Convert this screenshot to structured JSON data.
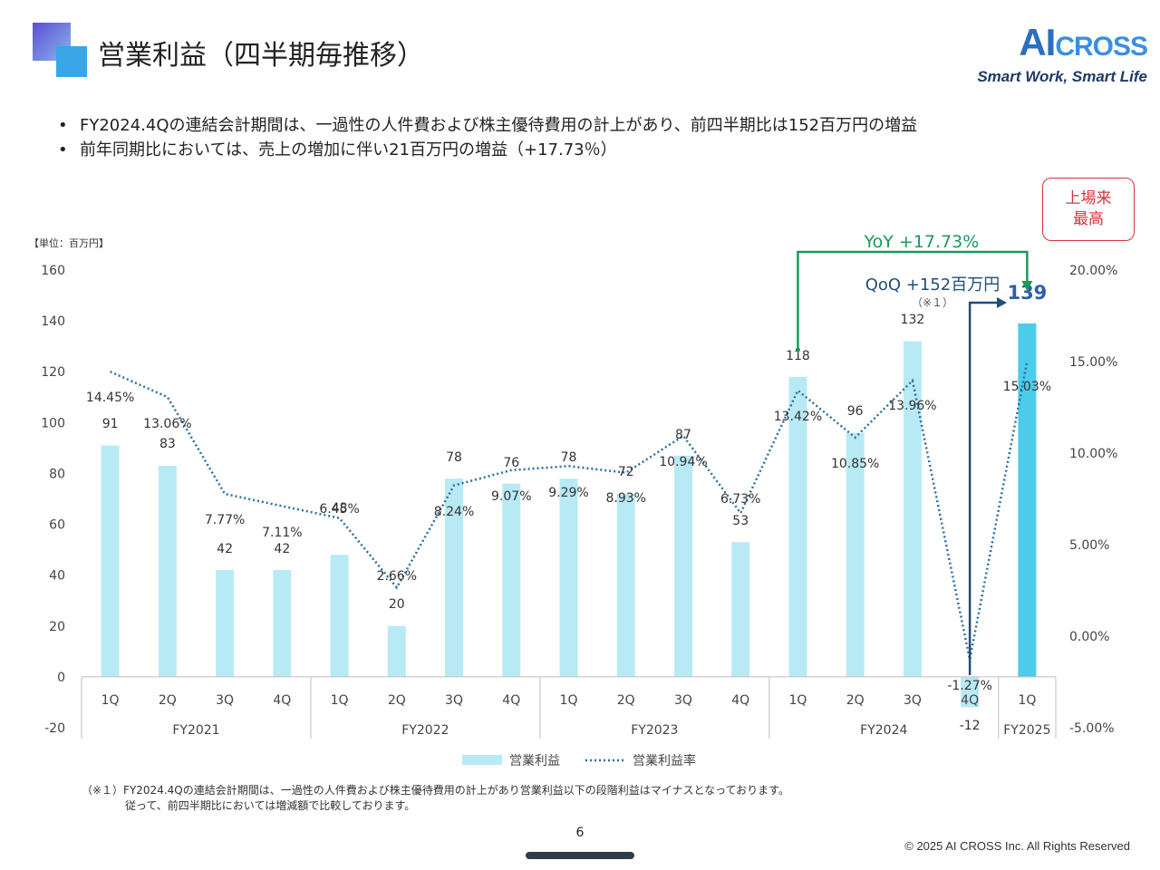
{
  "header": {
    "title": "営業利益（四半期毎推移）",
    "logo_brand_a": "AI",
    "logo_brand_b": "CROSS",
    "logo_tagline": "Smart Work, Smart Life"
  },
  "bullets": [
    "FY2024.4Qの連結会計期間は、一過性の人件費および株主優待費用の計上があり、前四半期比は152百万円の増益",
    "前年同期比においては、売上の増加に伴い21百万円の増益（+17.73％）"
  ],
  "badge": {
    "line1": "上場来",
    "line2": "最高"
  },
  "annotations": {
    "yoy": "YoY +17.73%",
    "qoq": "QoQ +152百万円",
    "qoq_note": "（※１）"
  },
  "footnote": {
    "line1": "（※１）FY2024.4Qの連結会計期間は、一過性の人件費および株主優待費用の計上があり営業利益以下の段階利益はマイナスとなっております。",
    "line2": "従って、前四半期比においては増減額で比較しております。"
  },
  "page_number": "6",
  "copyright": "© 2025 AI CROSS Inc. All Rights Reserved",
  "colors": {
    "bar": "#b8eaf6",
    "bar_highlight": "#4ccbea",
    "line": "#2a6f9e",
    "yoy": "#1a9a5a",
    "qoq": "#1f4e79",
    "badge": "#d4343a",
    "latest_value": "#2f5fa8"
  },
  "chart_data": {
    "type": "bar",
    "unit_label": "【単位：百万円】",
    "categories": [
      "1Q",
      "2Q",
      "3Q",
      "4Q",
      "1Q",
      "2Q",
      "3Q",
      "4Q",
      "1Q",
      "2Q",
      "3Q",
      "4Q",
      "1Q",
      "2Q",
      "3Q",
      "4Q",
      "1Q"
    ],
    "groups": [
      {
        "label": "FY2021",
        "count": 4
      },
      {
        "label": "FY2022",
        "count": 4
      },
      {
        "label": "FY2023",
        "count": 4
      },
      {
        "label": "FY2024",
        "count": 4
      },
      {
        "label": "FY2025",
        "count": 1
      }
    ],
    "series": [
      {
        "name": "営業利益",
        "type": "bar",
        "axis": "left",
        "values": [
          91,
          83,
          42,
          42,
          48,
          20,
          78,
          76,
          78,
          72,
          87,
          53,
          118,
          96,
          132,
          -12,
          139
        ],
        "labels": [
          "91",
          "83",
          "42",
          "42",
          "48",
          "20",
          "78",
          "76",
          "78",
          "72",
          "87",
          "53",
          "118",
          "96",
          "132",
          "-12",
          "139"
        ]
      },
      {
        "name": "営業利益率",
        "type": "line",
        "axis": "right",
        "values": [
          14.45,
          13.06,
          7.77,
          7.11,
          6.45,
          2.66,
          8.24,
          9.07,
          9.29,
          8.93,
          10.94,
          6.73,
          13.42,
          10.85,
          13.96,
          -1.27,
          15.03
        ],
        "labels": [
          "14.45%",
          "13.06%",
          "7.77%",
          "7.11%",
          "6.45%",
          "2.66%",
          "8.24%",
          "9.07%",
          "9.29%",
          "8.93%",
          "10.94%",
          "6.73%",
          "13.42%",
          "10.85%",
          "13.96%",
          "-1.27%",
          "15.03%"
        ]
      }
    ],
    "ylim": [
      -20,
      160
    ],
    "yticks": [
      "160",
      "140",
      "120",
      "100",
      "80",
      "60",
      "40",
      "20",
      "0",
      "-20"
    ],
    "y2lim": [
      -5,
      20
    ],
    "y2ticks": [
      "20.00%",
      "15.00%",
      "10.00%",
      "5.00%",
      "0.00%",
      "-5.00%"
    ],
    "legend_position": "bottom"
  }
}
